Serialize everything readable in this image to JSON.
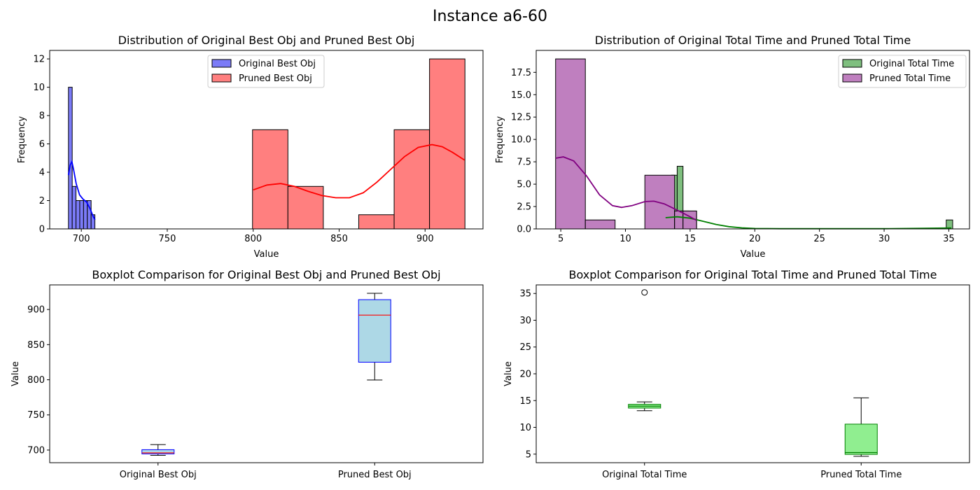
{
  "figure": {
    "title": "Instance a6-60"
  },
  "chart_data": [
    {
      "type": "bar",
      "title": "Distribution of Original Best Obj and Pruned Best Obj",
      "xlabel": "Value",
      "ylabel": "Frequency",
      "xlim": [
        681.6,
        933.7
      ],
      "ylim": [
        0,
        12.6
      ],
      "xticks": [
        700,
        750,
        800,
        850,
        900
      ],
      "yticks": [
        0,
        2,
        4,
        6,
        8,
        10,
        12
      ],
      "legend": {
        "position": "upper-center"
      },
      "series": [
        {
          "name": "Original Best Obj",
          "color": "#7b7bf7",
          "edge": "#000000",
          "bins": [
            [
              692.5,
              694.7,
              10
            ],
            [
              694.7,
              696.9,
              3
            ],
            [
              696.9,
              699.1,
              2
            ],
            [
              699.1,
              701.3,
              2
            ],
            [
              701.3,
              703.5,
              2
            ],
            [
              703.5,
              705.7,
              2
            ],
            [
              705.7,
              707.9,
              1
            ]
          ],
          "kde": {
            "color": "#0000ff",
            "points": [
              [
                692.5,
                3.8
              ],
              [
                693.5,
                4.5
              ],
              [
                694.5,
                4.75
              ],
              [
                695.5,
                4.2
              ],
              [
                697,
                3.2
              ],
              [
                699,
                2.4
              ],
              [
                701,
                2.1
              ],
              [
                703,
                1.9
              ],
              [
                705,
                1.45
              ],
              [
                707,
                0.85
              ],
              [
                708,
                0.65
              ]
            ]
          }
        },
        {
          "name": "Pruned Best Obj",
          "color": "#ff7f7f",
          "edge": "#000000",
          "bins": [
            [
              799.6,
              820.2,
              7
            ],
            [
              820.2,
              840.8,
              3
            ],
            [
              840.8,
              861.4,
              0
            ],
            [
              861.4,
              882.0,
              1
            ],
            [
              882.0,
              902.6,
              7
            ],
            [
              902.6,
              923.2,
              12
            ]
          ],
          "kde": {
            "color": "#ff0000",
            "points": [
              [
                800,
                2.75
              ],
              [
                808,
                3.1
              ],
              [
                816,
                3.2
              ],
              [
                824,
                3.0
              ],
              [
                832,
                2.65
              ],
              [
                840,
                2.35
              ],
              [
                848,
                2.2
              ],
              [
                856,
                2.2
              ],
              [
                864,
                2.55
              ],
              [
                872,
                3.3
              ],
              [
                880,
                4.2
              ],
              [
                888,
                5.1
              ],
              [
                896,
                5.75
              ],
              [
                904,
                5.95
              ],
              [
                910,
                5.8
              ],
              [
                916,
                5.4
              ],
              [
                923,
                4.85
              ]
            ]
          }
        }
      ]
    },
    {
      "type": "bar",
      "title": "Distribution of Original Total Time and Pruned Total Time",
      "xlabel": "Value",
      "ylabel": "Frequency",
      "xlim": [
        3.1,
        36.6
      ],
      "ylim": [
        0,
        19.95
      ],
      "xticks": [
        5,
        10,
        15,
        20,
        25,
        30,
        35
      ],
      "yticks": [
        0.0,
        2.5,
        5.0,
        7.5,
        10.0,
        12.5,
        15.0,
        17.5
      ],
      "ytick_labels": [
        "0.0",
        "2.5",
        "5.0",
        "7.5",
        "10.0",
        "12.5",
        "15.0",
        "17.5"
      ],
      "legend": {
        "position": "upper-right"
      },
      "series": [
        {
          "name": "Original Total Time",
          "color": "#7fbf7f",
          "edge": "#000000",
          "bins": [
            [
              13.12,
              13.56,
              4
            ],
            [
              13.56,
              14.0,
              6
            ],
            [
              14.0,
              14.45,
              7
            ],
            [
              14.45,
              14.89,
              2
            ],
            [
              34.8,
              35.3,
              1
            ]
          ],
          "kde": {
            "color": "#008000",
            "points": [
              [
                13.1,
                1.25
              ],
              [
                14,
                1.35
              ],
              [
                15,
                1.2
              ],
              [
                16,
                0.85
              ],
              [
                17,
                0.5
              ],
              [
                18,
                0.25
              ],
              [
                19,
                0.12
              ],
              [
                20,
                0.05
              ],
              [
                22,
                0.02
              ],
              [
                30,
                0.02
              ],
              [
                33,
                0.06
              ],
              [
                35.2,
                0.1
              ]
            ]
          }
        },
        {
          "name": "Pruned Total Time",
          "color": "#bf7fbf",
          "edge": "#000000",
          "bins": [
            [
              4.6,
              6.9,
              19
            ],
            [
              6.9,
              9.2,
              1
            ],
            [
              9.2,
              11.5,
              0
            ],
            [
              11.5,
              13.8,
              6
            ],
            [
              13.8,
              15.5,
              2
            ]
          ],
          "overlay_bins": [
            [
              13.8,
              14.45,
              2
            ],
            [
              14.45,
              15.5,
              2
            ]
          ],
          "kde": {
            "color": "#800080",
            "points": [
              [
                4.6,
                7.9
              ],
              [
                5.2,
                8.05
              ],
              [
                6,
                7.6
              ],
              [
                7,
                5.9
              ],
              [
                8,
                3.8
              ],
              [
                9,
                2.6
              ],
              [
                9.7,
                2.4
              ],
              [
                10.5,
                2.6
              ],
              [
                11.5,
                3.05
              ],
              [
                12.2,
                3.1
              ],
              [
                13,
                2.8
              ],
              [
                14,
                2.1
              ],
              [
                15,
                1.35
              ],
              [
                15.5,
                0.95
              ]
            ]
          }
        }
      ]
    },
    {
      "type": "box",
      "title": "Boxplot Comparison for Original Best Obj and Pruned Best Obj",
      "ylabel": "Value",
      "ylim": [
        682,
        935
      ],
      "yticks": [
        700,
        750,
        800,
        850,
        900
      ],
      "boxes": [
        {
          "label": "Original Best Obj",
          "whislo": 692.5,
          "q1": 694.5,
          "med": 696,
          "q3": 700.5,
          "whishi": 707.8,
          "fliers": [],
          "fill": "#add8e6",
          "edge": "#0000ff",
          "median_color": "#ff0000"
        },
        {
          "label": "Pruned Best Obj",
          "whislo": 799.6,
          "q1": 825,
          "med": 892,
          "q3": 914,
          "whishi": 923,
          "fliers": [],
          "fill": "#add8e6",
          "edge": "#0000ff",
          "median_color": "#ff0000"
        }
      ]
    },
    {
      "type": "box",
      "title": "Boxplot Comparison for Original Total Time and Pruned Total Time",
      "ylabel": "Value",
      "ylim": [
        3.4,
        36.6
      ],
      "yticks": [
        5,
        10,
        15,
        20,
        25,
        30,
        35
      ],
      "boxes": [
        {
          "label": "Original Total Time",
          "whislo": 13.1,
          "q1": 13.6,
          "med": 13.95,
          "q3": 14.3,
          "whishi": 14.75,
          "fliers": [
            35.2
          ],
          "fill": "#90ee90",
          "edge": "#008000",
          "median_color": "#008000"
        },
        {
          "label": "Pruned Total Time",
          "whislo": 4.6,
          "q1": 4.95,
          "med": 5.3,
          "q3": 10.6,
          "whishi": 15.5,
          "fliers": [],
          "fill": "#90ee90",
          "edge": "#008000",
          "median_color": "#008000"
        }
      ]
    }
  ]
}
